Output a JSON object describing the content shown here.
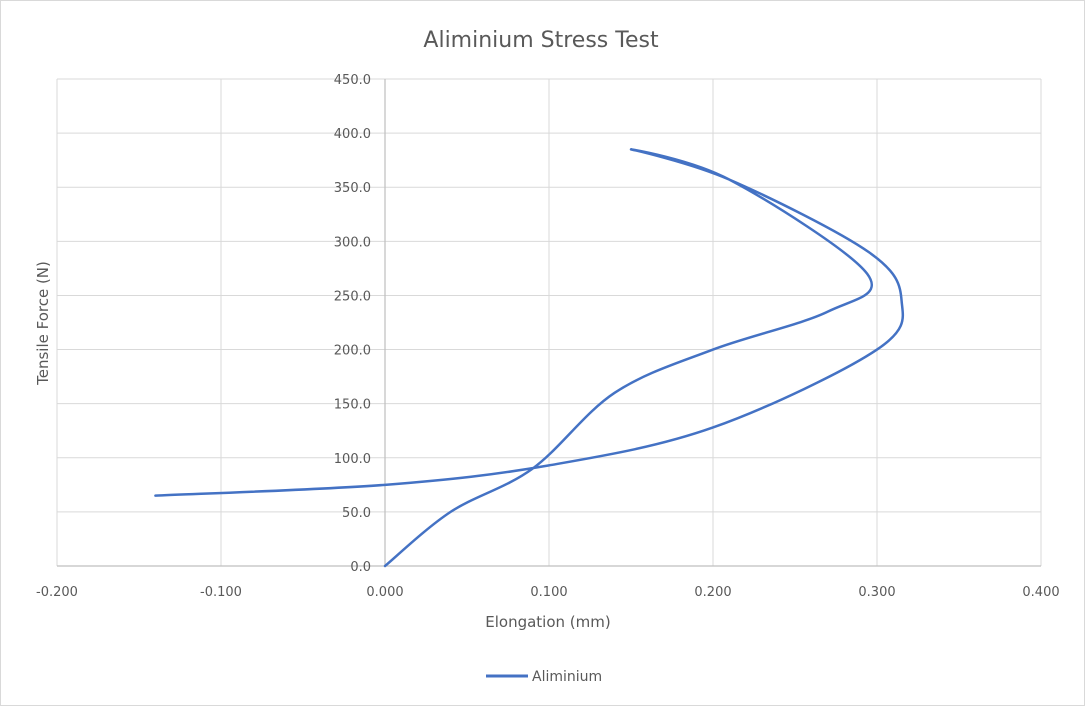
{
  "chart_data": {
    "type": "scatter",
    "title": "Aliminium Stress Test",
    "xlabel": "Elongation (mm)",
    "ylabel": "Tensile Force (N)",
    "xlim": [
      -0.2,
      0.4
    ],
    "ylim": [
      0,
      450
    ],
    "x_ticks": [
      -0.2,
      -0.1,
      0.0,
      0.1,
      0.2,
      0.3,
      0.4
    ],
    "x_tick_labels": [
      "-0.200",
      "-0.100",
      "0.000",
      "0.100",
      "0.200",
      "0.300",
      "0.400"
    ],
    "y_ticks": [
      0,
      50,
      100,
      150,
      200,
      250,
      300,
      350,
      400,
      450
    ],
    "y_tick_labels": [
      "0.0",
      "50.0",
      "100.0",
      "150.0",
      "200.0",
      "250.0",
      "300.0",
      "350.0",
      "400.0",
      "450.0"
    ],
    "grid": true,
    "legend_position": "bottom",
    "series": [
      {
        "name": "Aliminium",
        "color": "#4472c4",
        "smooth": true,
        "points": [
          {
            "x": 0.0,
            "y": 0
          },
          {
            "x": 0.04,
            "y": 50
          },
          {
            "x": 0.09,
            "y": 90
          },
          {
            "x": 0.14,
            "y": 160
          },
          {
            "x": 0.2,
            "y": 200
          },
          {
            "x": 0.27,
            "y": 235
          },
          {
            "x": 0.294,
            "y": 270
          },
          {
            "x": 0.21,
            "y": 357
          },
          {
            "x": 0.15,
            "y": 385
          },
          {
            "x": 0.21,
            "y": 357
          },
          {
            "x": 0.295,
            "y": 290
          },
          {
            "x": 0.315,
            "y": 245
          },
          {
            "x": 0.3,
            "y": 200
          },
          {
            "x": 0.2,
            "y": 128
          },
          {
            "x": 0.1,
            "y": 93
          },
          {
            "x": 0.0,
            "y": 75
          },
          {
            "x": -0.14,
            "y": 65
          }
        ]
      }
    ]
  }
}
